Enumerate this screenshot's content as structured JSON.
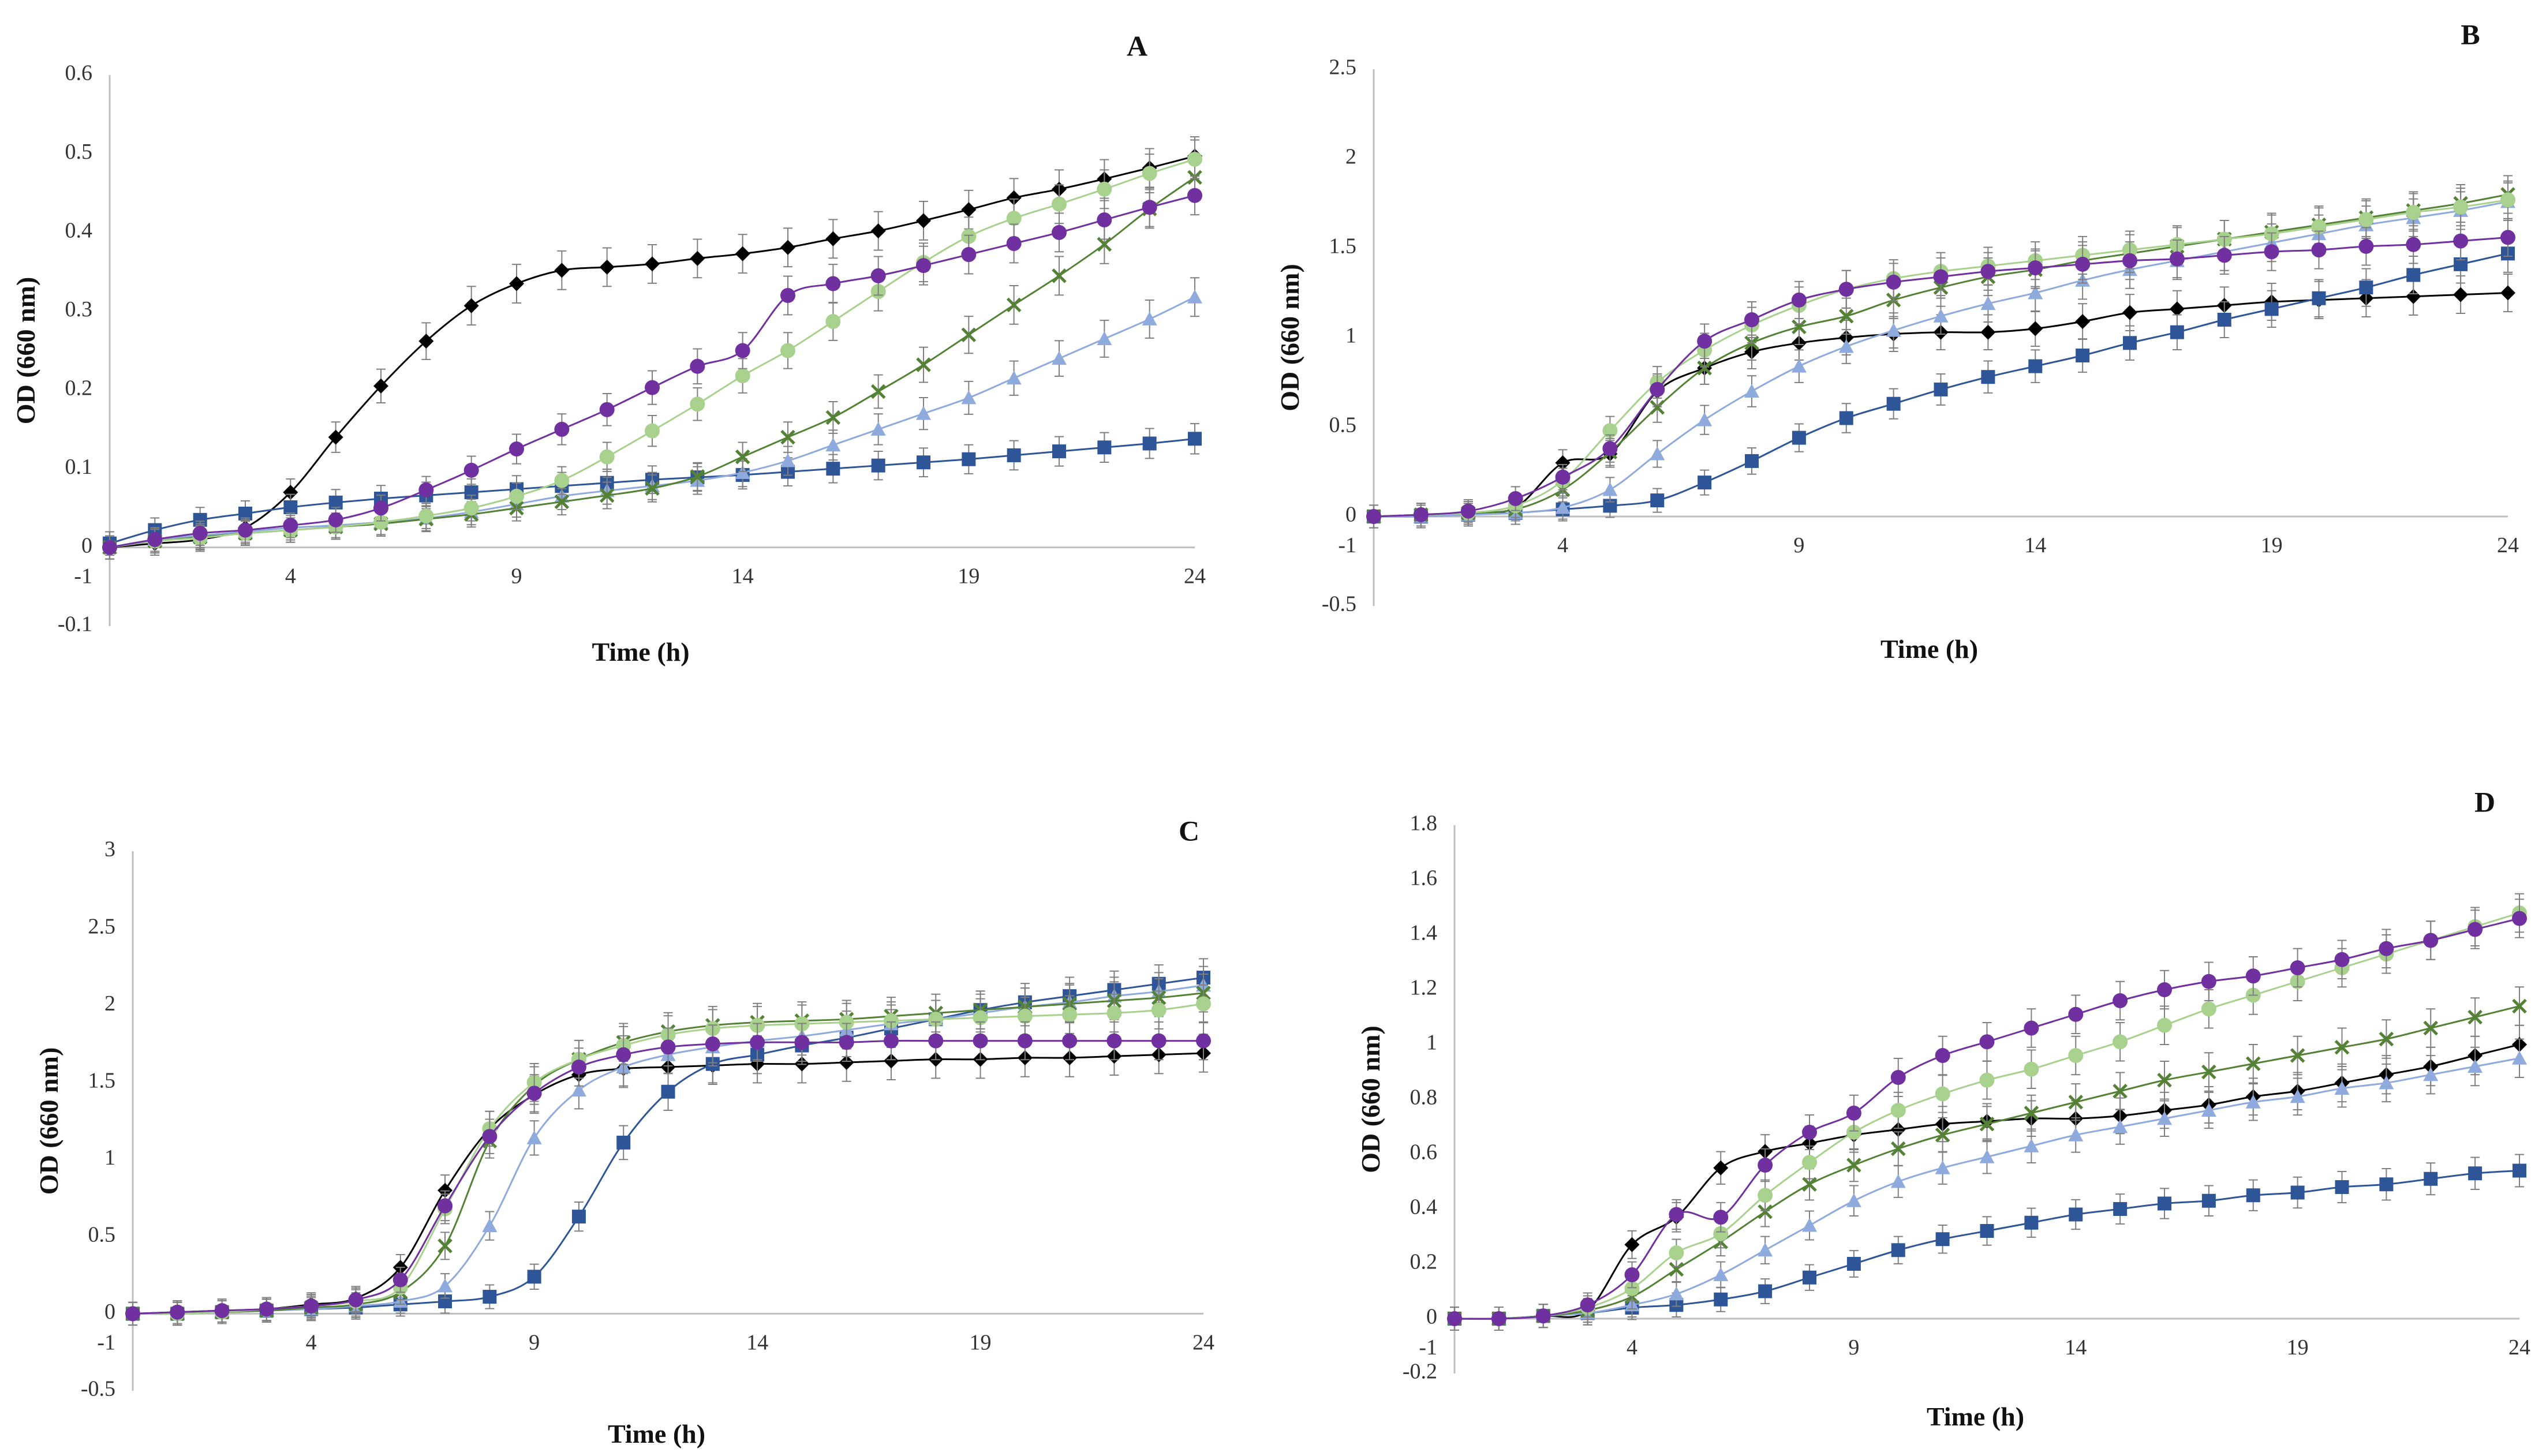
{
  "figure": {
    "series_colors": {
      "black": "#000000",
      "blue": "#2E5597",
      "lightblue": "#8FAADC",
      "green": "#548235",
      "lightgreen": "#A9D18E",
      "purple": "#7030A0"
    }
  },
  "chart_data": [
    {
      "panel": "A",
      "type": "line",
      "title": "A",
      "xlabel": "Time (h)",
      "ylabel": "OD (660 nm)",
      "x_ticks": [
        "-1",
        "4",
        "9",
        "14",
        "19",
        "24"
      ],
      "y_ticks": [
        "-0.1",
        "0",
        "0.1",
        "0.2",
        "0.3",
        "0.4",
        "0.5",
        "0.6"
      ],
      "xlim": [
        0,
        24
      ],
      "ylim": [
        -0.1,
        0.6
      ],
      "x": [
        0,
        1,
        2,
        3,
        4,
        5,
        6,
        7,
        8,
        9,
        10,
        11,
        12,
        13,
        14,
        15,
        16,
        17,
        18,
        19,
        20,
        21,
        22,
        23,
        24
      ],
      "series": [
        {
          "name": "black",
          "marker": "diamond",
          "values": [
            0.0,
            0.005,
            0.01,
            0.025,
            0.07,
            0.14,
            0.205,
            0.262,
            0.307,
            0.335,
            0.352,
            0.356,
            0.36,
            0.367,
            0.373,
            0.381,
            0.392,
            0.402,
            0.415,
            0.429,
            0.444,
            0.455,
            0.468,
            0.482,
            0.497
          ]
        },
        {
          "name": "blue",
          "marker": "square",
          "values": [
            0.005,
            0.022,
            0.035,
            0.043,
            0.051,
            0.057,
            0.062,
            0.066,
            0.07,
            0.074,
            0.078,
            0.082,
            0.086,
            0.089,
            0.092,
            0.096,
            0.1,
            0.104,
            0.108,
            0.112,
            0.117,
            0.122,
            0.127,
            0.132,
            0.138
          ]
        },
        {
          "name": "lightblue",
          "marker": "triangle",
          "values": [
            0.0,
            0.01,
            0.015,
            0.02,
            0.025,
            0.028,
            0.032,
            0.037,
            0.045,
            0.055,
            0.065,
            0.072,
            0.078,
            0.085,
            0.095,
            0.11,
            0.13,
            0.15,
            0.17,
            0.19,
            0.215,
            0.24,
            0.265,
            0.29,
            0.318
          ]
        },
        {
          "name": "green",
          "marker": "x",
          "values": [
            0.0,
            0.008,
            0.013,
            0.018,
            0.022,
            0.026,
            0.03,
            0.036,
            0.042,
            0.05,
            0.058,
            0.066,
            0.075,
            0.09,
            0.115,
            0.14,
            0.165,
            0.198,
            0.232,
            0.27,
            0.308,
            0.345,
            0.385,
            0.43,
            0.47
          ]
        },
        {
          "name": "lightgreen",
          "marker": "circle",
          "values": [
            0.0,
            0.008,
            0.012,
            0.018,
            0.022,
            0.026,
            0.032,
            0.04,
            0.05,
            0.065,
            0.085,
            0.115,
            0.148,
            0.182,
            0.218,
            0.25,
            0.287,
            0.325,
            0.362,
            0.395,
            0.418,
            0.436,
            0.455,
            0.475,
            0.493
          ]
        },
        {
          "name": "purple",
          "marker": "circle",
          "values": [
            0.0,
            0.01,
            0.018,
            0.022,
            0.028,
            0.035,
            0.05,
            0.073,
            0.098,
            0.125,
            0.15,
            0.175,
            0.203,
            0.23,
            0.25,
            0.32,
            0.335,
            0.345,
            0.358,
            0.372,
            0.386,
            0.4,
            0.416,
            0.432,
            0.447
          ]
        }
      ]
    },
    {
      "panel": "B",
      "type": "line",
      "title": "B",
      "xlabel": "Time (h)",
      "ylabel": "OD (660 nm)",
      "x_ticks": [
        "-1",
        "4",
        "9",
        "14",
        "19",
        "24"
      ],
      "y_ticks": [
        "-0.5",
        "0",
        "0.5",
        "1",
        "1.5",
        "2",
        "2.5"
      ],
      "xlim": [
        0,
        24
      ],
      "ylim": [
        -0.5,
        2.5
      ],
      "x": [
        0,
        1,
        2,
        3,
        4,
        5,
        6,
        7,
        8,
        9,
        10,
        11,
        12,
        13,
        14,
        15,
        16,
        17,
        18,
        19,
        20,
        21,
        22,
        23,
        24
      ],
      "series": [
        {
          "name": "black",
          "marker": "diamond",
          "values": [
            0.0,
            0.01,
            0.02,
            0.05,
            0.3,
            0.35,
            0.7,
            0.83,
            0.92,
            0.97,
            1.0,
            1.02,
            1.03,
            1.03,
            1.05,
            1.09,
            1.14,
            1.16,
            1.18,
            1.2,
            1.21,
            1.22,
            1.23,
            1.24,
            1.25
          ]
        },
        {
          "name": "blue",
          "marker": "square",
          "values": [
            0.0,
            0.0,
            0.01,
            0.02,
            0.04,
            0.06,
            0.09,
            0.19,
            0.31,
            0.44,
            0.55,
            0.63,
            0.71,
            0.78,
            0.84,
            0.9,
            0.97,
            1.03,
            1.1,
            1.16,
            1.22,
            1.28,
            1.35,
            1.41,
            1.47
          ]
        },
        {
          "name": "lightblue",
          "marker": "triangle",
          "values": [
            0.0,
            0.0,
            0.01,
            0.02,
            0.05,
            0.15,
            0.35,
            0.54,
            0.7,
            0.84,
            0.95,
            1.04,
            1.12,
            1.19,
            1.25,
            1.32,
            1.38,
            1.43,
            1.48,
            1.53,
            1.58,
            1.63,
            1.67,
            1.71,
            1.76
          ]
        },
        {
          "name": "green",
          "marker": "x",
          "values": [
            0.0,
            0.01,
            0.02,
            0.04,
            0.15,
            0.36,
            0.61,
            0.83,
            0.97,
            1.06,
            1.12,
            1.21,
            1.28,
            1.34,
            1.38,
            1.43,
            1.47,
            1.51,
            1.55,
            1.59,
            1.63,
            1.67,
            1.71,
            1.75,
            1.8
          ]
        },
        {
          "name": "lightgreen",
          "marker": "circle",
          "values": [
            0.0,
            0.01,
            0.02,
            0.06,
            0.2,
            0.48,
            0.75,
            0.93,
            1.07,
            1.18,
            1.27,
            1.33,
            1.37,
            1.4,
            1.43,
            1.46,
            1.49,
            1.52,
            1.55,
            1.58,
            1.62,
            1.66,
            1.7,
            1.73,
            1.77
          ]
        },
        {
          "name": "purple",
          "marker": "circle",
          "values": [
            0.0,
            0.01,
            0.03,
            0.1,
            0.22,
            0.38,
            0.71,
            0.98,
            1.1,
            1.21,
            1.27,
            1.31,
            1.34,
            1.37,
            1.39,
            1.41,
            1.43,
            1.44,
            1.46,
            1.48,
            1.49,
            1.51,
            1.52,
            1.54,
            1.56
          ]
        }
      ]
    },
    {
      "panel": "C",
      "type": "line",
      "title": "C",
      "xlabel": "Time (h)",
      "ylabel": "OD (660 nm)",
      "x_ticks": [
        "-1",
        "4",
        "9",
        "14",
        "19",
        "24"
      ],
      "y_ticks": [
        "-0.5",
        "0",
        "0.5",
        "1",
        "1.5",
        "2",
        "2.5",
        "3"
      ],
      "xlim": [
        0,
        24
      ],
      "ylim": [
        -0.5,
        3
      ],
      "x": [
        0,
        1,
        2,
        3,
        4,
        5,
        6,
        7,
        8,
        9,
        10,
        11,
        12,
        13,
        14,
        15,
        16,
        17,
        18,
        19,
        20,
        21,
        22,
        23,
        24
      ],
      "series": [
        {
          "name": "black",
          "marker": "diamond",
          "values": [
            0.0,
            0.01,
            0.02,
            0.03,
            0.06,
            0.1,
            0.3,
            0.8,
            1.2,
            1.42,
            1.55,
            1.59,
            1.6,
            1.61,
            1.62,
            1.62,
            1.63,
            1.64,
            1.65,
            1.65,
            1.66,
            1.66,
            1.67,
            1.68,
            1.69
          ]
        },
        {
          "name": "blue",
          "marker": "square",
          "values": [
            0.0,
            0.0,
            0.01,
            0.02,
            0.03,
            0.04,
            0.06,
            0.08,
            0.11,
            0.24,
            0.63,
            1.11,
            1.44,
            1.62,
            1.68,
            1.74,
            1.79,
            1.85,
            1.91,
            1.97,
            2.02,
            2.06,
            2.1,
            2.14,
            2.18
          ]
        },
        {
          "name": "lightblue",
          "marker": "triangle",
          "values": [
            0.0,
            0.0,
            0.01,
            0.02,
            0.03,
            0.05,
            0.08,
            0.18,
            0.57,
            1.14,
            1.45,
            1.6,
            1.68,
            1.73,
            1.77,
            1.8,
            1.84,
            1.88,
            1.91,
            1.95,
            1.99,
            2.02,
            2.06,
            2.09,
            2.13
          ]
        },
        {
          "name": "green",
          "marker": "x",
          "values": [
            0.0,
            0.0,
            0.01,
            0.02,
            0.04,
            0.06,
            0.14,
            0.44,
            1.12,
            1.48,
            1.65,
            1.76,
            1.83,
            1.87,
            1.89,
            1.9,
            1.91,
            1.93,
            1.95,
            1.97,
            1.99,
            2.01,
            2.03,
            2.05,
            2.08
          ]
        },
        {
          "name": "lightgreen",
          "marker": "circle",
          "values": [
            0.0,
            0.0,
            0.01,
            0.03,
            0.05,
            0.08,
            0.17,
            0.68,
            1.2,
            1.5,
            1.65,
            1.74,
            1.81,
            1.85,
            1.87,
            1.88,
            1.89,
            1.9,
            1.91,
            1.92,
            1.93,
            1.94,
            1.95,
            1.97,
            2.01
          ]
        },
        {
          "name": "purple",
          "marker": "circle",
          "values": [
            0.0,
            0.01,
            0.02,
            0.03,
            0.05,
            0.09,
            0.22,
            0.7,
            1.15,
            1.43,
            1.6,
            1.68,
            1.73,
            1.75,
            1.76,
            1.76,
            1.76,
            1.77,
            1.77,
            1.77,
            1.77,
            1.77,
            1.77,
            1.77,
            1.77
          ]
        }
      ]
    },
    {
      "panel": "D",
      "type": "line",
      "title": "D",
      "xlabel": "Time (h)",
      "ylabel": "OD (660 nm)",
      "x_ticks": [
        "-1",
        "4",
        "9",
        "14",
        "19",
        "24"
      ],
      "y_ticks": [
        "-0.2",
        "0",
        "0.2",
        "0.4",
        "0.6",
        "0.8",
        "1",
        "1.2",
        "1.4",
        "1.6",
        "1.8"
      ],
      "xlim": [
        0,
        24
      ],
      "ylim": [
        -0.2,
        1.8
      ],
      "x": [
        0,
        1,
        2,
        3,
        4,
        5,
        6,
        7,
        8,
        9,
        10,
        11,
        12,
        13,
        14,
        15,
        16,
        17,
        18,
        19,
        20,
        21,
        22,
        23,
        24
      ],
      "series": [
        {
          "name": "black",
          "marker": "diamond",
          "values": [
            0.0,
            0.0,
            0.01,
            0.03,
            0.27,
            0.37,
            0.55,
            0.61,
            0.64,
            0.67,
            0.69,
            0.71,
            0.72,
            0.73,
            0.73,
            0.74,
            0.76,
            0.78,
            0.81,
            0.83,
            0.86,
            0.89,
            0.92,
            0.96,
            1.0
          ]
        },
        {
          "name": "blue",
          "marker": "square",
          "values": [
            0.0,
            0.0,
            0.01,
            0.02,
            0.04,
            0.05,
            0.07,
            0.1,
            0.15,
            0.2,
            0.25,
            0.29,
            0.32,
            0.35,
            0.38,
            0.4,
            0.42,
            0.43,
            0.45,
            0.46,
            0.48,
            0.49,
            0.51,
            0.53,
            0.54
          ]
        },
        {
          "name": "lightblue",
          "marker": "triangle",
          "values": [
            0.0,
            0.0,
            0.01,
            0.02,
            0.05,
            0.09,
            0.16,
            0.25,
            0.34,
            0.43,
            0.5,
            0.55,
            0.59,
            0.63,
            0.67,
            0.7,
            0.73,
            0.76,
            0.79,
            0.81,
            0.84,
            0.86,
            0.89,
            0.92,
            0.95
          ]
        },
        {
          "name": "green",
          "marker": "x",
          "values": [
            0.0,
            0.0,
            0.01,
            0.03,
            0.08,
            0.18,
            0.28,
            0.39,
            0.49,
            0.56,
            0.62,
            0.67,
            0.71,
            0.75,
            0.79,
            0.83,
            0.87,
            0.9,
            0.93,
            0.96,
            0.99,
            1.02,
            1.06,
            1.1,
            1.14
          ]
        },
        {
          "name": "lightgreen",
          "marker": "circle",
          "values": [
            0.0,
            0.0,
            0.01,
            0.04,
            0.11,
            0.24,
            0.31,
            0.45,
            0.57,
            0.68,
            0.76,
            0.82,
            0.87,
            0.91,
            0.96,
            1.01,
            1.07,
            1.13,
            1.18,
            1.23,
            1.28,
            1.33,
            1.38,
            1.43,
            1.48
          ]
        },
        {
          "name": "purple",
          "marker": "circle",
          "values": [
            0.0,
            0.0,
            0.01,
            0.05,
            0.16,
            0.38,
            0.37,
            0.56,
            0.68,
            0.75,
            0.88,
            0.96,
            1.01,
            1.06,
            1.11,
            1.16,
            1.2,
            1.23,
            1.25,
            1.28,
            1.31,
            1.35,
            1.38,
            1.42,
            1.46
          ]
        }
      ]
    }
  ]
}
